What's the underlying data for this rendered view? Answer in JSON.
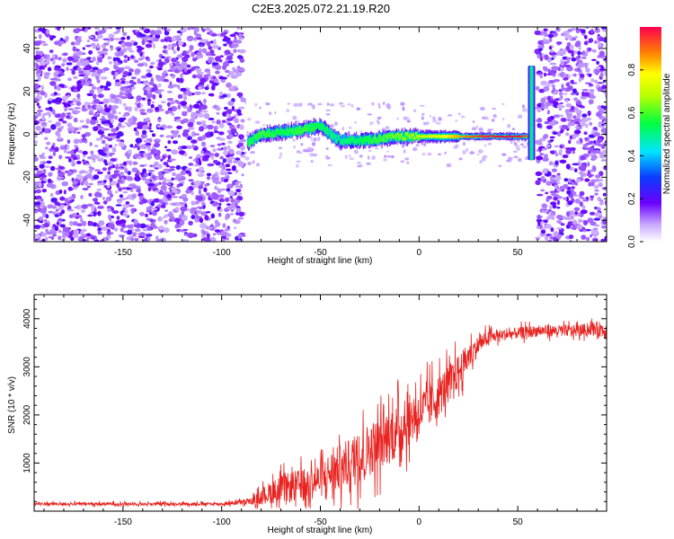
{
  "figure": {
    "title": "C2E3.2025.072.21.19.R20"
  },
  "chart_data": [
    {
      "type": "heatmap",
      "title": "C2E3.2025.072.21.19.R20",
      "xlabel": "Height of straight line (km)",
      "ylabel": "Frequency (Hz)",
      "xlim": [
        -195,
        95
      ],
      "ylim": [
        -50,
        50
      ],
      "x_ticks": [
        -150,
        -100,
        -50,
        0,
        50
      ],
      "y_ticks": [
        -40,
        -20,
        0,
        20,
        40
      ],
      "colorbar": {
        "label": "Normalized spectral amplitude",
        "range": [
          0,
          1
        ],
        "ticks": [
          0.0,
          0.2,
          0.4,
          0.6,
          0.8
        ]
      },
      "noise_regions_km": [
        [
          -195,
          -89
        ],
        [
          60,
          95
        ]
      ],
      "signal_band": {
        "x": [
          -87,
          -80,
          -70,
          -60,
          -50,
          -45,
          -40,
          -30,
          -20,
          -10,
          0,
          10,
          20,
          30,
          40,
          50,
          55,
          57
        ],
        "freq_hz": [
          -4,
          0,
          1,
          2,
          4,
          0,
          -3,
          -3,
          -2,
          -1,
          -1,
          -1,
          -1,
          -1,
          -1,
          -1,
          -1,
          0
        ],
        "peak_amplitude": [
          0.55,
          0.6,
          0.55,
          0.6,
          0.55,
          0.5,
          0.5,
          0.55,
          0.6,
          0.65,
          0.7,
          0.75,
          0.85,
          0.95,
          1.0,
          1.0,
          0.9,
          0.5
        ]
      },
      "spike": {
        "x": 57,
        "freq_range_hz": [
          -12,
          32
        ]
      },
      "grid": false
    },
    {
      "type": "line",
      "xlabel": "Height of straight line (km)",
      "ylabel": "SNR (10 * v/v)",
      "xlim": [
        -195,
        95
      ],
      "ylim": [
        0,
        4500
      ],
      "x_ticks": [
        -150,
        -100,
        -50,
        0,
        50
      ],
      "y_ticks": [
        1000,
        2000,
        3000,
        4000
      ],
      "color": "#e8221f",
      "series": [
        {
          "x": [
            -195,
            -150,
            -100,
            -85,
            -80,
            -75,
            -70,
            -65,
            -60,
            -55,
            -50,
            -45,
            -40,
            -35,
            -30,
            -25,
            -20,
            -15,
            -10,
            -5,
            0,
            5,
            10,
            15,
            20,
            25,
            30,
            35,
            40,
            50,
            60,
            70,
            80,
            90,
            95
          ],
          "values": [
            150,
            150,
            150,
            200,
            300,
            400,
            450,
            500,
            550,
            600,
            650,
            800,
            900,
            1000,
            1100,
            1300,
            1400,
            1550,
            1700,
            1900,
            2050,
            2200,
            2400,
            2650,
            2900,
            3200,
            3450,
            3600,
            3650,
            3700,
            3750,
            3750,
            3750,
            3800,
            3750
          ],
          "noise": [
            40,
            40,
            40,
            80,
            200,
            300,
            350,
            400,
            400,
            450,
            450,
            550,
            600,
            650,
            700,
            700,
            700,
            700,
            700,
            650,
            600,
            600,
            550,
            500,
            450,
            350,
            250,
            180,
            150,
            150,
            150,
            150,
            150,
            170,
            250
          ]
        }
      ],
      "grid": false
    }
  ]
}
